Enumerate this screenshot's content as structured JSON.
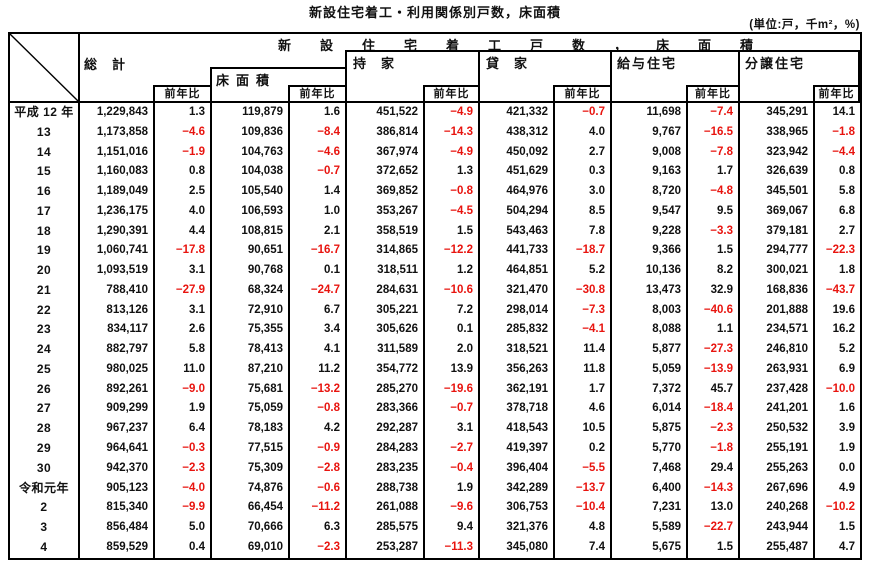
{
  "title": "新設住宅着工・利用関係別戸数，床面積",
  "units_note": "(単位:戸，千m²，%)",
  "colors": {
    "negative": "#e8140f",
    "text": "#111111",
    "border": "#000000"
  },
  "table": {
    "band_header": "新設住宅着工戸数，床面積",
    "groups": {
      "total": "総計",
      "floor_area": "床面積",
      "owned": "持家",
      "rented": "貸家",
      "company_housing": "給与住宅",
      "built_for_sale": "分譲住宅"
    },
    "yoy_label": "前年比",
    "columns": [
      "総計",
      "総計前年比",
      "床面積",
      "床面積前年比",
      "持家",
      "持家前年比",
      "貸家",
      "貸家前年比",
      "給与住宅",
      "給与住宅前年比",
      "分譲住宅",
      "分譲住宅前年比"
    ],
    "rows": [
      {
        "year": "平成 12 年",
        "values": [
          "1,229,843",
          "1.3",
          "119,879",
          "1.6",
          "451,522",
          "-4.9",
          "421,332",
          "-0.7",
          "11,698",
          "-7.4",
          "345,291",
          "14.1"
        ]
      },
      {
        "year": "13",
        "values": [
          "1,173,858",
          "-4.6",
          "109,836",
          "-8.4",
          "386,814",
          "-14.3",
          "438,312",
          "4.0",
          "9,767",
          "-16.5",
          "338,965",
          "-1.8"
        ]
      },
      {
        "year": "14",
        "values": [
          "1,151,016",
          "-1.9",
          "104,763",
          "-4.6",
          "367,974",
          "-4.9",
          "450,092",
          "2.7",
          "9,008",
          "-7.8",
          "323,942",
          "-4.4"
        ]
      },
      {
        "year": "15",
        "values": [
          "1,160,083",
          "0.8",
          "104,038",
          "-0.7",
          "372,652",
          "1.3",
          "451,629",
          "0.3",
          "9,163",
          "1.7",
          "326,639",
          "0.8"
        ]
      },
      {
        "year": "16",
        "values": [
          "1,189,049",
          "2.5",
          "105,540",
          "1.4",
          "369,852",
          "-0.8",
          "464,976",
          "3.0",
          "8,720",
          "-4.8",
          "345,501",
          "5.8"
        ]
      },
      {
        "year": "17",
        "values": [
          "1,236,175",
          "4.0",
          "106,593",
          "1.0",
          "353,267",
          "-4.5",
          "504,294",
          "8.5",
          "9,547",
          "9.5",
          "369,067",
          "6.8"
        ]
      },
      {
        "year": "18",
        "values": [
          "1,290,391",
          "4.4",
          "108,815",
          "2.1",
          "358,519",
          "1.5",
          "543,463",
          "7.8",
          "9,228",
          "-3.3",
          "379,181",
          "2.7"
        ]
      },
      {
        "year": "19",
        "values": [
          "1,060,741",
          "-17.8",
          "90,651",
          "-16.7",
          "314,865",
          "-12.2",
          "441,733",
          "-18.7",
          "9,366",
          "1.5",
          "294,777",
          "-22.3"
        ]
      },
      {
        "year": "20",
        "values": [
          "1,093,519",
          "3.1",
          "90,768",
          "0.1",
          "318,511",
          "1.2",
          "464,851",
          "5.2",
          "10,136",
          "8.2",
          "300,021",
          "1.8"
        ]
      },
      {
        "year": "21",
        "values": [
          "788,410",
          "-27.9",
          "68,324",
          "-24.7",
          "284,631",
          "-10.6",
          "321,470",
          "-30.8",
          "13,473",
          "32.9",
          "168,836",
          "-43.7"
        ]
      },
      {
        "year": "22",
        "values": [
          "813,126",
          "3.1",
          "72,910",
          "6.7",
          "305,221",
          "7.2",
          "298,014",
          "-7.3",
          "8,003",
          "-40.6",
          "201,888",
          "19.6"
        ]
      },
      {
        "year": "23",
        "values": [
          "834,117",
          "2.6",
          "75,355",
          "3.4",
          "305,626",
          "0.1",
          "285,832",
          "-4.1",
          "8,088",
          "1.1",
          "234,571",
          "16.2"
        ]
      },
      {
        "year": "24",
        "values": [
          "882,797",
          "5.8",
          "78,413",
          "4.1",
          "311,589",
          "2.0",
          "318,521",
          "11.4",
          "5,877",
          "-27.3",
          "246,810",
          "5.2"
        ]
      },
      {
        "year": "25",
        "values": [
          "980,025",
          "11.0",
          "87,210",
          "11.2",
          "354,772",
          "13.9",
          "356,263",
          "11.8",
          "5,059",
          "-13.9",
          "263,931",
          "6.9"
        ]
      },
      {
        "year": "26",
        "values": [
          "892,261",
          "-9.0",
          "75,681",
          "-13.2",
          "285,270",
          "-19.6",
          "362,191",
          "1.7",
          "7,372",
          "45.7",
          "237,428",
          "-10.0"
        ]
      },
      {
        "year": "27",
        "values": [
          "909,299",
          "1.9",
          "75,059",
          "-0.8",
          "283,366",
          "-0.7",
          "378,718",
          "4.6",
          "6,014",
          "-18.4",
          "241,201",
          "1.6"
        ]
      },
      {
        "year": "28",
        "values": [
          "967,237",
          "6.4",
          "78,183",
          "4.2",
          "292,287",
          "3.1",
          "418,543",
          "10.5",
          "5,875",
          "-2.3",
          "250,532",
          "3.9"
        ]
      },
      {
        "year": "29",
        "values": [
          "964,641",
          "-0.3",
          "77,515",
          "-0.9",
          "284,283",
          "-2.7",
          "419,397",
          "0.2",
          "5,770",
          "-1.8",
          "255,191",
          "1.9"
        ]
      },
      {
        "year": "30",
        "values": [
          "942,370",
          "-2.3",
          "75,309",
          "-2.8",
          "283,235",
          "-0.4",
          "396,404",
          "-5.5",
          "7,468",
          "29.4",
          "255,263",
          "0.0"
        ]
      },
      {
        "year": "令和元年",
        "values": [
          "905,123",
          "-4.0",
          "74,876",
          "-0.6",
          "288,738",
          "1.9",
          "342,289",
          "-13.7",
          "6,400",
          "-14.3",
          "267,696",
          "4.9"
        ]
      },
      {
        "year": "2",
        "values": [
          "815,340",
          "-9.9",
          "66,454",
          "-11.2",
          "261,088",
          "-9.6",
          "306,753",
          "-10.4",
          "7,231",
          "13.0",
          "240,268",
          "-10.2"
        ]
      },
      {
        "year": "3",
        "values": [
          "856,484",
          "5.0",
          "70,666",
          "6.3",
          "285,575",
          "9.4",
          "321,376",
          "4.8",
          "5,589",
          "-22.7",
          "243,944",
          "1.5"
        ]
      },
      {
        "year": "4",
        "values": [
          "859,529",
          "0.4",
          "69,010",
          "-2.3",
          "253,287",
          "-11.3",
          "345,080",
          "7.4",
          "5,675",
          "1.5",
          "255,487",
          "4.7"
        ]
      }
    ]
  }
}
